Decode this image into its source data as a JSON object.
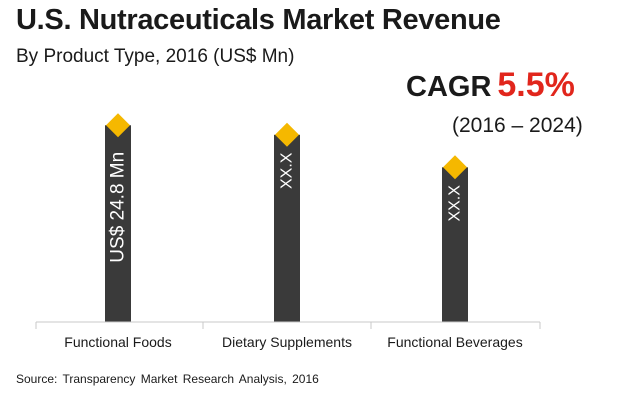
{
  "title": "U.S. Nutraceuticals Market Revenue",
  "subtitle": "By Product Type, 2016 (US$ Mn)",
  "cagr": {
    "label": "CAGR",
    "value": "5.5%",
    "period": "(2016 – 2024)"
  },
  "source": "Source: Transparency Market Research Analysis, 2016",
  "colors": {
    "bar": "#3a3a3a",
    "diamond": "#f5b800",
    "accent_red": "#e1261c",
    "axis": "#c8c8c8"
  },
  "chart_data": {
    "type": "bar",
    "categories": [
      "Functional Foods",
      "Dietary Supplements",
      "Functional Beverages"
    ],
    "values": [
      24.8,
      23.6,
      19.5
    ],
    "data_labels": [
      "US$ 24.8 Mn",
      "XX.X",
      "XX.X"
    ],
    "ylim": [
      0,
      30
    ],
    "grid": false,
    "legend": "none"
  }
}
